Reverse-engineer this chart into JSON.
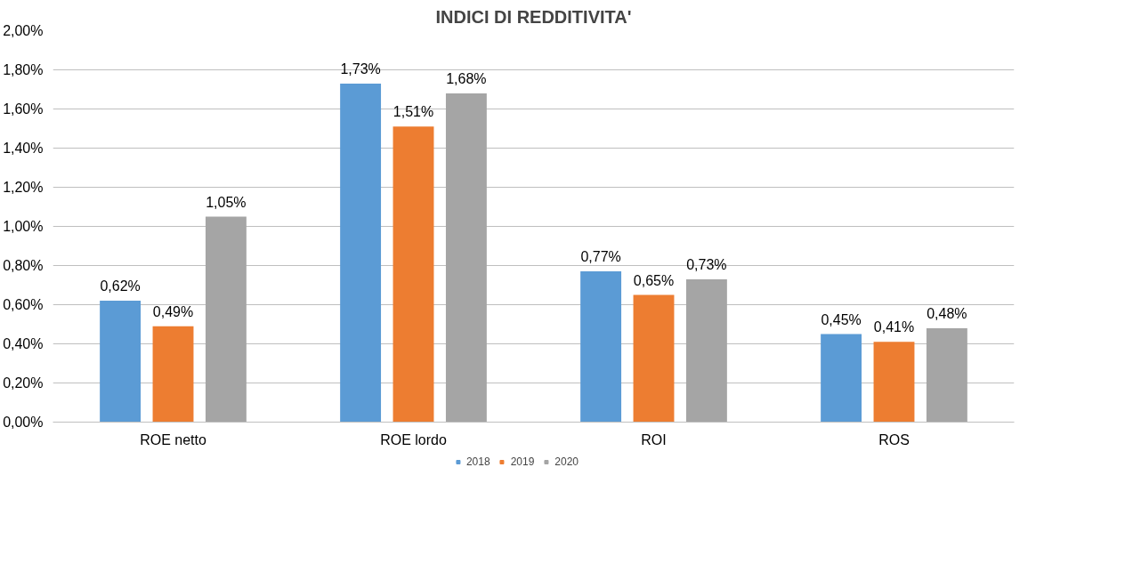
{
  "chart_data": {
    "type": "bar",
    "title": "INDICI DI REDDITIVITA'",
    "categories": [
      "ROE netto",
      "ROE lordo",
      "ROI",
      "ROS"
    ],
    "series": [
      {
        "name": "2018",
        "color": "#5b9bd5",
        "values": [
          0.62,
          1.73,
          0.77,
          0.45
        ],
        "value_labels": [
          "0,62%",
          "1,73%",
          "0,77%",
          "0,45%"
        ]
      },
      {
        "name": "2019",
        "color": "#ed7d31",
        "values": [
          0.49,
          1.51,
          0.65,
          0.41
        ],
        "value_labels": [
          "0,49%",
          "1,51%",
          "0,65%",
          "0,41%"
        ]
      },
      {
        "name": "2020",
        "color": "#a5a5a5",
        "values": [
          1.05,
          1.68,
          0.73,
          0.48
        ],
        "value_labels": [
          "1,05%",
          "1,68%",
          "0,73%",
          "0,48%"
        ]
      }
    ],
    "ylim": [
      0,
      2
    ],
    "yticks": [
      {
        "value": 0,
        "label": "0,00%"
      },
      {
        "value": 0.2,
        "label": "0,20%"
      },
      {
        "value": 0.4,
        "label": "0,40%"
      },
      {
        "value": 0.6,
        "label": "0,60%"
      },
      {
        "value": 0.8,
        "label": "0,80%"
      },
      {
        "value": 1.0,
        "label": "1,00%"
      },
      {
        "value": 1.2,
        "label": "1,20%"
      },
      {
        "value": 1.4,
        "label": "1,40%"
      },
      {
        "value": 1.6,
        "label": "1,60%"
      },
      {
        "value": 1.8,
        "label": "1,80%"
      },
      {
        "value": 2.0,
        "label": "2,00%"
      }
    ],
    "grid": "y",
    "legend": "bottom"
  }
}
